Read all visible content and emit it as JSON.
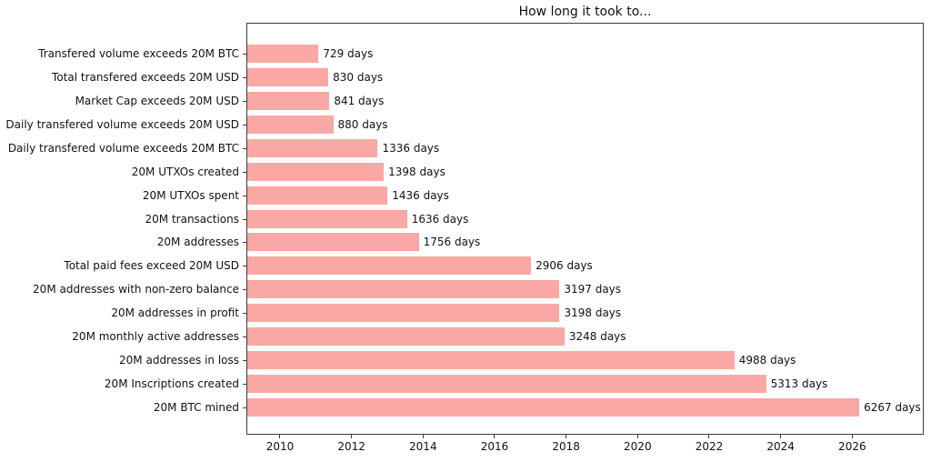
{
  "chart_data": {
    "type": "bar",
    "orientation": "horizontal",
    "title": "How long it took to...",
    "categories": [
      "Transfered volume exceeds 20M BTC",
      "Total transfered exceeds 20M USD",
      "Market Cap exceeds 20M USD",
      "Daily transfered volume exceeds 20M USD",
      "Daily transfered volume exceeds 20M BTC",
      "20M UTXOs created",
      "20M UTXOs spent",
      "20M transactions",
      "20M addresses",
      "Total paid fees exceed 20M USD",
      "20M addresses with non-zero balance",
      "20M addresses in profit",
      "20M monthly active addresses",
      "20M addresses in loss",
      "20M Inscriptions created",
      "20M BTC mined"
    ],
    "values": [
      729,
      830,
      841,
      880,
      1336,
      1398,
      1436,
      1636,
      1756,
      2906,
      3197,
      3198,
      3248,
      4988,
      5313,
      6267
    ],
    "value_unit": "days",
    "x_ticks": [
      2010,
      2012,
      2014,
      2016,
      2018,
      2020,
      2022,
      2024,
      2026
    ],
    "xlim_years": [
      2009.06,
      2028.0
    ],
    "days_per_year": 365.25,
    "xlabel": "",
    "ylabel": "",
    "grid": false,
    "legend": false,
    "bar_color": "#faa8a5",
    "axis_color": "#3c3c3c",
    "text_color": "#111111",
    "background_color": "#ffffff"
  }
}
